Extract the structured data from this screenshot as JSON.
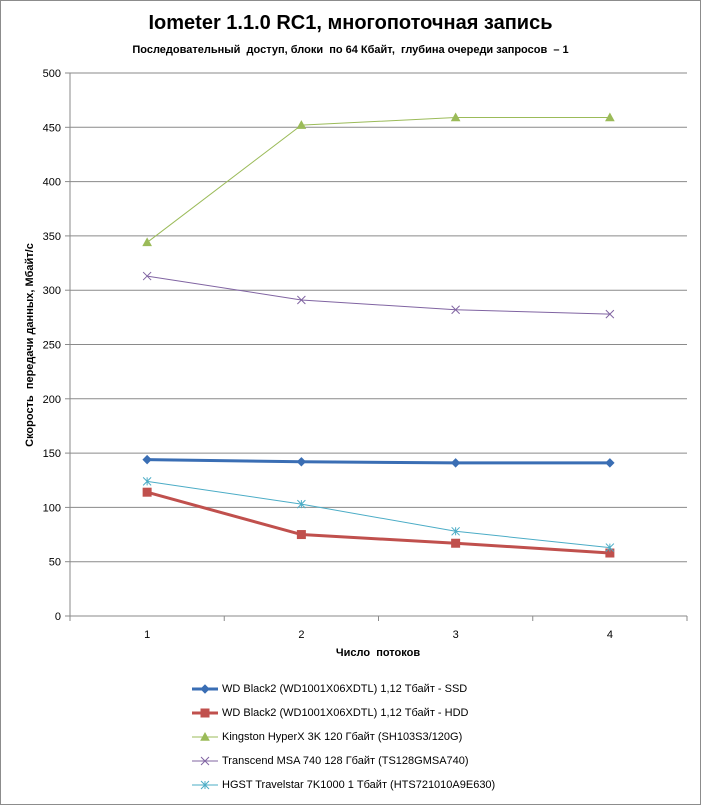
{
  "chart_data": {
    "type": "line",
    "title": "Iometer 1.1.0 RC1, многопоточная запись",
    "subtitle": "Последовательный  доступ, блоки  по 64 Кбайт,  глубина очереди запросов  – 1",
    "xlabel": "Число  потоков",
    "ylabel": "Скорость  передачи данных, Мбайт/с",
    "categories": [
      "1",
      "2",
      "3",
      "4"
    ],
    "ylim": [
      0,
      500
    ],
    "yticks": [
      0,
      50,
      100,
      150,
      200,
      250,
      300,
      350,
      400,
      450,
      500
    ],
    "grid": true,
    "legend_position": "bottom",
    "series": [
      {
        "name": "WD Black2 (WD1001X06XDTL) 1,12 Тбайт - SSD",
        "values": [
          144,
          142,
          141,
          141
        ],
        "color": "#3a6eb4",
        "marker": "diamond",
        "thick": true
      },
      {
        "name": "WD Black2 (WD1001X06XDTL) 1,12 Тбайт - HDD",
        "values": [
          114,
          75,
          67,
          58
        ],
        "color": "#c0504d",
        "marker": "square",
        "thick": true
      },
      {
        "name": "Kingston HyperX 3K 120 Гбайт (SH103S3/120G)",
        "values": [
          344,
          452,
          459,
          459
        ],
        "color": "#9bbb59",
        "marker": "triangle",
        "thick": false
      },
      {
        "name": "Transcend MSA 740 128 Гбайт (TS128GMSA740)",
        "values": [
          313,
          291,
          282,
          278
        ],
        "color": "#8064a2",
        "marker": "x",
        "thick": false
      },
      {
        "name": "HGST Travelstar 7K1000 1 Тбайт (HTS721010A9E630)",
        "values": [
          124,
          103,
          78,
          63
        ],
        "color": "#4bacc6",
        "marker": "star",
        "thick": false
      }
    ]
  }
}
